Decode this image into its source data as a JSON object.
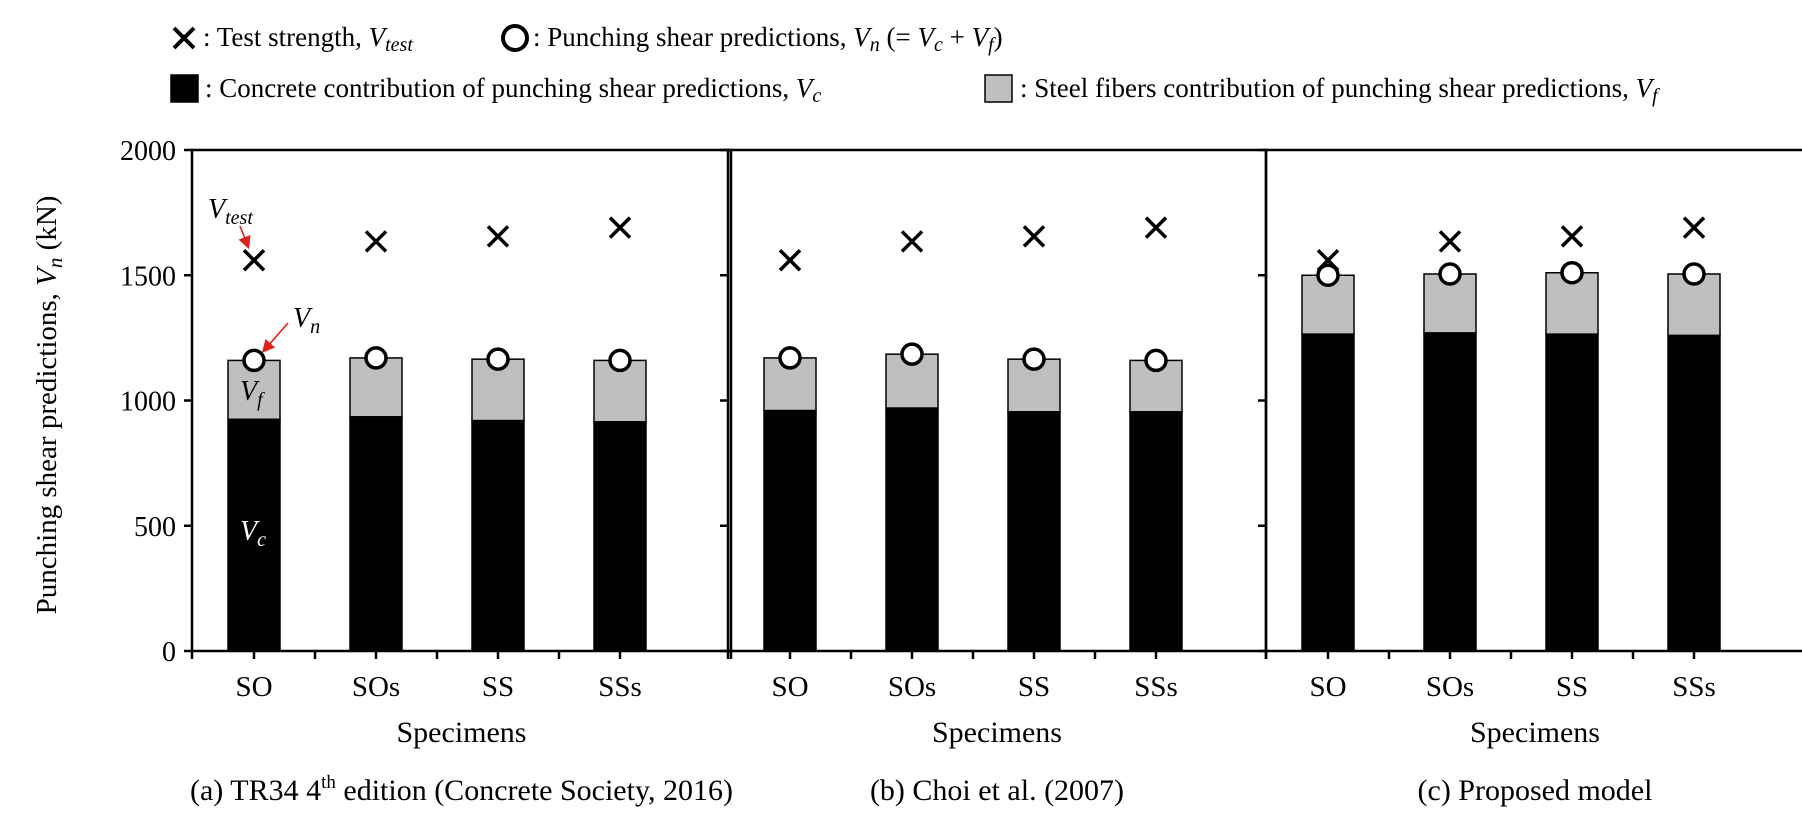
{
  "legend": {
    "test": "Test strength, ",
    "test_sym": "V",
    "test_sub": "test",
    "pred": "Punching shear predictions, ",
    "pred_sym": "V",
    "pred_sub": "n",
    "pred_eq": " (= ",
    "pred_vc": "V",
    "pred_vc_sub": "c",
    "pred_plus": " + ",
    "pred_vf": "V",
    "pred_vf_sub": "f",
    "pred_close": ")",
    "concrete": "Concrete contribution of punching shear predictions, ",
    "concrete_sym": "V",
    "concrete_sub": "c",
    "steel": "Steel fibers contribution of punching shear predictions, ",
    "steel_sym": "V",
    "steel_sub": "f",
    "colon": ": "
  },
  "annotations": {
    "vtest": "V",
    "vtest_sub": "test",
    "vn": "V",
    "vn_sub": "n",
    "vf": "V",
    "vf_sub": "f",
    "vc": "V",
    "vc_sub": "c"
  },
  "colors": {
    "concrete": "#000000",
    "steel": "#bfbfbf",
    "arrow": "#e0201b"
  },
  "chart_data": [
    {
      "type": "bar",
      "title": "(a) TR34 4th edition (Concrete Society, 2016)",
      "title_parts": [
        "(a) TR34 4",
        "th",
        " edition (Concrete Society, 2016)"
      ],
      "xlabel": "Specimens",
      "ylabel": "Punching shear predictions, V_n (kN)",
      "ylim": [
        0,
        2000
      ],
      "yticks": [
        0,
        500,
        1000,
        1500,
        2000
      ],
      "categories": [
        "SO",
        "SOs",
        "SS",
        "SSs"
      ],
      "series": [
        {
          "name": "V_c",
          "values": [
            925,
            935,
            920,
            915
          ]
        },
        {
          "name": "V_f",
          "values": [
            235,
            235,
            245,
            245
          ]
        },
        {
          "name": "V_n",
          "values": [
            1160,
            1170,
            1165,
            1160
          ]
        },
        {
          "name": "V_test",
          "values": [
            1560,
            1635,
            1655,
            1690
          ]
        }
      ]
    },
    {
      "type": "bar",
      "title": "(b) Choi et al. (2007)",
      "xlabel": "Specimens",
      "ylim": [
        0,
        2000
      ],
      "categories": [
        "SO",
        "SOs",
        "SS",
        "SSs"
      ],
      "series": [
        {
          "name": "V_c",
          "values": [
            960,
            970,
            955,
            955
          ]
        },
        {
          "name": "V_f",
          "values": [
            210,
            215,
            210,
            205
          ]
        },
        {
          "name": "V_n",
          "values": [
            1170,
            1185,
            1165,
            1160
          ]
        },
        {
          "name": "V_test",
          "values": [
            1560,
            1635,
            1655,
            1690
          ]
        }
      ]
    },
    {
      "type": "bar",
      "title": "(c) Proposed model",
      "xlabel": "Specimens",
      "ylim": [
        0,
        2000
      ],
      "categories": [
        "SO",
        "SOs",
        "SS",
        "SSs"
      ],
      "series": [
        {
          "name": "V_c",
          "values": [
            1265,
            1270,
            1265,
            1260
          ]
        },
        {
          "name": "V_f",
          "values": [
            235,
            235,
            245,
            245
          ]
        },
        {
          "name": "V_n",
          "values": [
            1500,
            1505,
            1510,
            1505
          ]
        },
        {
          "name": "V_test",
          "values": [
            1560,
            1635,
            1655,
            1690
          ]
        }
      ]
    }
  ]
}
